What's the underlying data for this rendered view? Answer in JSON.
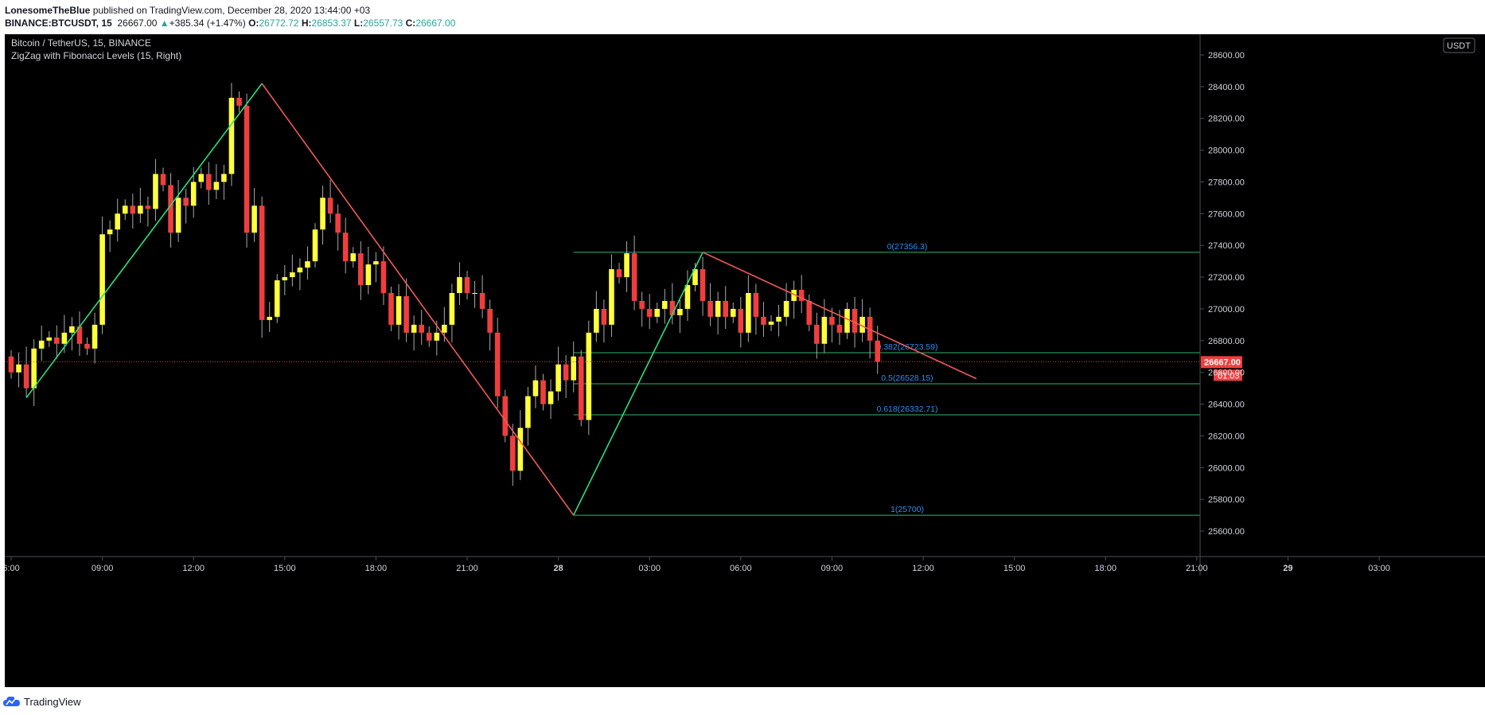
{
  "header": {
    "author": "LonesomeTheBlue",
    "published": "published on TradingView.com, December 28, 2020 13:44:00 +03",
    "symbol": "BINANCE:BTCUSDT, 15",
    "last": "26667.00",
    "change": "+385.34 (+1.47%)",
    "o_label": "O:",
    "o": "26772.72",
    "h_label": "H:",
    "h": "26853.37",
    "l_label": "L:",
    "l": "26557.73",
    "c_label": "C:",
    "c": "26667.00"
  },
  "legend": {
    "title": "Bitcoin / TetherUS, 15, BINANCE",
    "indicator": "ZigZag with Fibonacci Levels (15, Right)"
  },
  "currency": "USDT",
  "price_badge": {
    "price": "26667.00",
    "countdown": "01:03"
  },
  "footer": {
    "brand": "TradingView"
  },
  "colors": {
    "background": "#000000",
    "bull_body": "#ffff3b",
    "bear_body": "#f03e3e",
    "zigzag_up": "#26e07e",
    "zigzag_down": "#f05a5a",
    "fib_line": "#2fb56a",
    "fib_label": "#2a8ef0",
    "axis_text": "#d1d4dc",
    "price_line": "#f03e3e"
  },
  "chart_data": {
    "type": "candlestick",
    "title": "Bitcoin / TetherUS, 15, BINANCE",
    "xlabel": "",
    "ylabel": "",
    "ylim": [
      25500,
      28700
    ],
    "y_ticks": [
      "25600.00",
      "25800.00",
      "26000.00",
      "26200.00",
      "26400.00",
      "26600.00",
      "26800.00",
      "27000.00",
      "27200.00",
      "27400.00",
      "27600.00",
      "27800.00",
      "28000.00",
      "28200.00",
      "28400.00",
      "28600.00"
    ],
    "x_ticks": [
      {
        "label": "6:00",
        "bar": 0
      },
      {
        "label": "09:00",
        "bar": 12
      },
      {
        "label": "12:00",
        "bar": 24
      },
      {
        "label": "15:00",
        "bar": 36
      },
      {
        "label": "18:00",
        "bar": 48
      },
      {
        "label": "21:00",
        "bar": 60
      },
      {
        "label": "28",
        "bar": 72
      },
      {
        "label": "03:00",
        "bar": 84
      },
      {
        "label": "06:00",
        "bar": 96
      },
      {
        "label": "09:00",
        "bar": 108
      },
      {
        "label": "12:00",
        "bar": 120
      },
      {
        "label": "15:00",
        "bar": 132
      },
      {
        "label": "18:00",
        "bar": 144
      },
      {
        "label": "21:00",
        "bar": 156
      },
      {
        "label": "29",
        "bar": 168
      },
      {
        "label": "03:00",
        "bar": 180
      }
    ],
    "closes": [
      26600,
      26650,
      26500,
      26750,
      26800,
      26820,
      26780,
      26850,
      26890,
      26780,
      26750,
      26900,
      27470,
      27500,
      27600,
      27650,
      27600,
      27650,
      27630,
      27850,
      27780,
      27480,
      27700,
      27650,
      27800,
      27850,
      27750,
      27800,
      27850,
      28330,
      28280,
      27480,
      27650,
      26930,
      26950,
      27180,
      27200,
      27230,
      27260,
      27300,
      27500,
      27700,
      27600,
      27480,
      27300,
      27350,
      27150,
      27280,
      27300,
      27100,
      26900,
      27080,
      26850,
      26900,
      26850,
      26800,
      26850,
      26900,
      27100,
      27200,
      27100,
      27100,
      27000,
      26850,
      26450,
      26200,
      25980,
      26250,
      26450,
      26550,
      26400,
      26480,
      26650,
      26550,
      26700,
      26300,
      26850,
      27000,
      26900,
      27250,
      27200,
      27350,
      27050,
      27000,
      26950,
      27000,
      27050,
      26960,
      27000,
      27150,
      27250,
      27050,
      26950,
      27050,
      26950,
      27000,
      26850,
      27100,
      26950,
      26900,
      26920,
      26950,
      27050,
      27120,
      27050,
      26900,
      26780,
      26950,
      26900,
      26850,
      27000,
      26850,
      26950,
      26800,
      26667
    ],
    "opens_first": 26700,
    "ohlc_note": "",
    "zigzag": [
      {
        "bar": 2,
        "price": 26440
      },
      {
        "bar": 33,
        "price": 28420
      },
      {
        "bar": 74,
        "price": 25700
      },
      {
        "bar": 91,
        "price": 27356.3
      },
      {
        "bar": 127,
        "price": 26560
      }
    ],
    "fib_levels": [
      {
        "label": "0(27356.3)",
        "price": 27356.3
      },
      {
        "label": "0.382(26723.59)",
        "price": 26723.59
      },
      {
        "label": "0.5(26528.15)",
        "price": 26528.15
      },
      {
        "label": "0.618(26332.71)",
        "price": 26332.71
      },
      {
        "label": "1(25700)",
        "price": 25700
      }
    ],
    "last_price": 26667.0
  }
}
